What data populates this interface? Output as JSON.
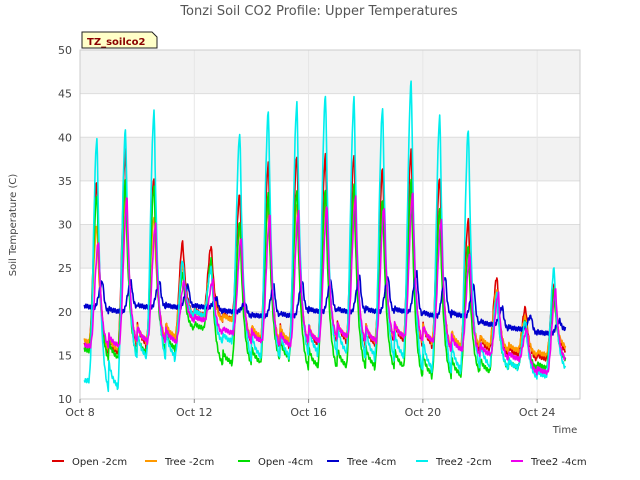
{
  "chart_data": {
    "type": "line",
    "title": "Tonzi Soil CO2 Profile: Upper Temperatures",
    "xlabel": "Time",
    "ylabel": "Soil Temperature (C)",
    "badge": "TZ_soilco2",
    "xlim": [
      "2024-10-08",
      "2024-10-25T12:00"
    ],
    "ylim": [
      10,
      50
    ],
    "x_ticks": [
      "Oct 8",
      "Oct 12",
      "Oct 16",
      "Oct 20",
      "Oct 24"
    ],
    "y_ticks": [
      10,
      15,
      20,
      25,
      30,
      35,
      40,
      45,
      50
    ],
    "grid": true,
    "legend_position": "bottom",
    "days": [
      "Oct 8",
      "Oct 9",
      "Oct 10",
      "Oct 11",
      "Oct 12",
      "Oct 13",
      "Oct 14",
      "Oct 15",
      "Oct 16",
      "Oct 17",
      "Oct 18",
      "Oct 19",
      "Oct 20",
      "Oct 21",
      "Oct 22",
      "Oct 23",
      "Oct 24",
      "Oct 25"
    ],
    "series": [
      {
        "name": "Open -2cm",
        "color": "#dd0000",
        "daily_min": [
          16.0,
          15.0,
          16.0,
          16.5,
          19.5,
          19.0,
          16.5,
          16.0,
          16.0,
          16.5,
          16.0,
          16.5,
          16.0,
          15.5,
          15.5,
          15.0,
          14.5,
          15.5
        ],
        "daily_max": [
          35.0,
          38.5,
          35.5,
          28.0,
          27.5,
          33.5,
          37.0,
          38.0,
          38.0,
          38.0,
          36.5,
          38.5,
          35.5,
          30.5,
          24.0,
          20.5,
          23.0,
          22.0
        ]
      },
      {
        "name": "Tree -2cm",
        "color": "#ff9900",
        "daily_min": [
          16.5,
          15.5,
          16.5,
          17.0,
          19.5,
          19.0,
          17.0,
          16.5,
          16.5,
          17.0,
          16.5,
          17.0,
          16.5,
          16.0,
          16.0,
          15.5,
          15.0,
          16.0
        ],
        "daily_max": [
          30.0,
          33.0,
          31.0,
          25.5,
          25.5,
          29.5,
          32.0,
          32.5,
          32.5,
          33.0,
          32.0,
          33.5,
          31.0,
          27.5,
          22.5,
          19.5,
          21.5,
          21.0
        ]
      },
      {
        "name": "Open -4cm",
        "color": "#00dd00",
        "daily_min": [
          15.5,
          14.5,
          15.0,
          15.5,
          18.0,
          14.0,
          14.0,
          14.5,
          13.5,
          13.5,
          13.5,
          13.5,
          12.5,
          12.5,
          13.0,
          13.5,
          13.5,
          14.5
        ],
        "daily_max": [
          33.5,
          35.0,
          34.5,
          24.5,
          26.0,
          30.5,
          33.5,
          34.0,
          34.0,
          34.5,
          33.0,
          35.0,
          32.0,
          27.5,
          22.0,
          19.0,
          22.5,
          21.0
        ]
      },
      {
        "name": "Tree -4cm",
        "color": "#0000cc",
        "daily_min": [
          20.5,
          20.0,
          20.5,
          20.5,
          20.5,
          20.0,
          19.5,
          19.5,
          20.0,
          20.0,
          20.0,
          20.0,
          19.5,
          19.5,
          18.5,
          18.0,
          17.5,
          18.0
        ],
        "daily_max": [
          23.5,
          23.5,
          23.5,
          23.0,
          21.5,
          21.0,
          23.0,
          23.5,
          23.5,
          24.0,
          24.0,
          24.5,
          24.0,
          23.0,
          20.5,
          19.5,
          19.0,
          18.5
        ],
        "peak_delay": 0.2
      },
      {
        "name": "Tree2 -2cm",
        "color": "#00eeee",
        "daily_min": [
          12.0,
          11.0,
          14.5,
          14.5,
          19.5,
          16.5,
          14.5,
          14.5,
          15.0,
          15.0,
          14.5,
          14.5,
          13.0,
          13.0,
          13.5,
          13.5,
          12.5,
          13.5
        ],
        "daily_max": [
          40.0,
          41.0,
          43.0,
          26.0,
          25.0,
          40.5,
          43.0,
          44.0,
          45.0,
          44.5,
          43.5,
          46.5,
          42.5,
          41.0,
          22.0,
          19.0,
          25.0,
          22.0
        ]
      },
      {
        "name": "Tree2 -4cm",
        "color": "#ee00ee",
        "daily_min": [
          16.0,
          16.0,
          16.5,
          16.5,
          19.0,
          17.5,
          16.5,
          16.0,
          16.5,
          17.0,
          16.5,
          17.0,
          16.5,
          15.5,
          15.0,
          14.5,
          13.0,
          14.5
        ],
        "daily_max": [
          28.0,
          33.0,
          30.0,
          23.5,
          23.5,
          28.5,
          31.0,
          31.5,
          32.0,
          33.0,
          32.0,
          33.5,
          30.5,
          26.5,
          22.0,
          18.0,
          22.5,
          20.0
        ],
        "peak_delay": 0.05
      }
    ]
  }
}
